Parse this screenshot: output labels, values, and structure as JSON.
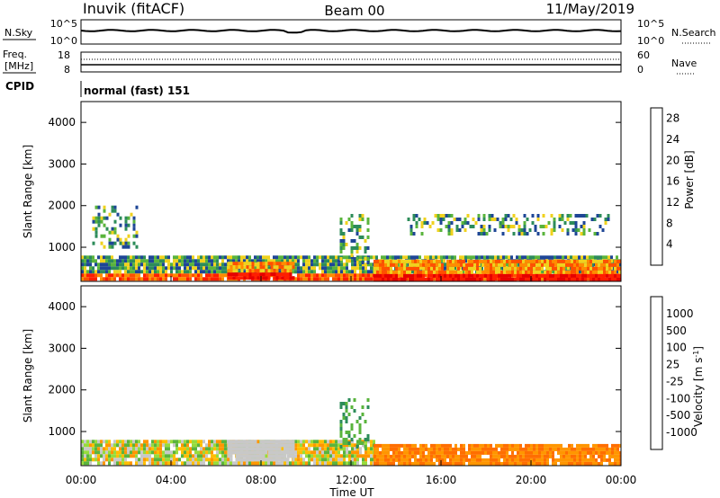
{
  "header": {
    "station": "Inuvik (fitACF)",
    "beam": "Beam 00",
    "date": "11/May/2019"
  },
  "noise_panel": {
    "left_label": "N.Sky",
    "right_label": "N.Search",
    "left_ticks": [
      "10^5",
      "10^0"
    ],
    "right_ticks": [
      "10^5",
      "10^0"
    ]
  },
  "freq_panel": {
    "left_label_1": "Freq.",
    "left_label_2": "[MHz]",
    "right_label": "Nave",
    "left_ticks": [
      "18",
      "8"
    ],
    "right_ticks": [
      "60",
      "0"
    ]
  },
  "cpid_panel": {
    "label": "CPID",
    "mode": "normal (fast) 151"
  },
  "time_axis": {
    "ticks": [
      "00:00",
      "04:00",
      "08:00",
      "12:00",
      "16:00",
      "20:00",
      "00:00"
    ],
    "label": "Time UT"
  },
  "colors": {
    "power_scale": [
      "#0a1eff",
      "#1e4696",
      "#2d8c5a",
      "#5ab43c",
      "#f0d21e",
      "#ff8c00",
      "#ff5000",
      "#ff1e00",
      "#e60000"
    ],
    "velocity_scale": [
      "#e60000",
      "#ff3c00",
      "#ff6e00",
      "#ff9600",
      "#ffbe00",
      "#c8c8c8",
      "#96dc3c",
      "#5ab43c",
      "#2d8c5a",
      "#1e6e8c",
      "#1e46b4"
    ]
  },
  "chart_data": [
    {
      "type": "heatmap",
      "title": "",
      "xlabel": "",
      "ylabel": "Slant Range [km]",
      "xlim": [
        "00:00",
        "00:00"
      ],
      "ylim": [
        180,
        4500
      ],
      "yticks": [
        1000,
        2000,
        3000,
        4000
      ],
      "colorbar": {
        "label": "Power [dB]",
        "ticks": [
          4,
          8,
          12,
          16,
          20,
          24,
          28
        ],
        "range": [
          0,
          30
        ]
      },
      "features": [
        {
          "t_start": 0.0,
          "t_end": 24.0,
          "range_min": 200,
          "range_max": 800,
          "value": "8-30"
        },
        {
          "t_start": 6.5,
          "t_end": 9.5,
          "range_min": 250,
          "range_max": 650,
          "value": "24-30"
        },
        {
          "t_start": 13.0,
          "t_end": 24.0,
          "range_min": 200,
          "range_max": 700,
          "value": "20-30"
        },
        {
          "t_start": 11.5,
          "t_end": 12.8,
          "range_min": 600,
          "range_max": 1800,
          "value": "8-28"
        },
        {
          "t_start": 0.5,
          "t_end": 2.5,
          "range_min": 1000,
          "range_max": 2000,
          "value": "4-16"
        },
        {
          "t_start": 14.5,
          "t_end": 23.5,
          "range_min": 1300,
          "range_max": 1800,
          "value": "4-10"
        }
      ]
    },
    {
      "type": "heatmap",
      "title": "",
      "xlabel": "Time UT",
      "ylabel": "Slant Range [km]",
      "xlim": [
        "00:00",
        "00:00"
      ],
      "ylim": [
        180,
        4500
      ],
      "yticks": [
        1000,
        2000,
        3000,
        4000
      ],
      "colorbar": {
        "label": "Velocity [m s-1]",
        "ticks": [
          1000,
          500,
          100,
          25,
          -25,
          -100,
          -500,
          -1000
        ],
        "range": [
          -1000,
          1000
        ]
      },
      "features": [
        {
          "t_start": 0.0,
          "t_end": 13.0,
          "range_min": 200,
          "range_max": 800,
          "value": "-100 to 100"
        },
        {
          "t_start": 6.5,
          "t_end": 9.5,
          "range_min": 300,
          "range_max": 800,
          "value": "-25 to 25"
        },
        {
          "t_start": 13.0,
          "t_end": 24.0,
          "range_min": 200,
          "range_max": 700,
          "value": "-500 to -100"
        },
        {
          "t_start": 11.5,
          "t_end": 12.8,
          "range_min": 600,
          "range_max": 1800,
          "value": "100 to 500"
        }
      ]
    }
  ]
}
